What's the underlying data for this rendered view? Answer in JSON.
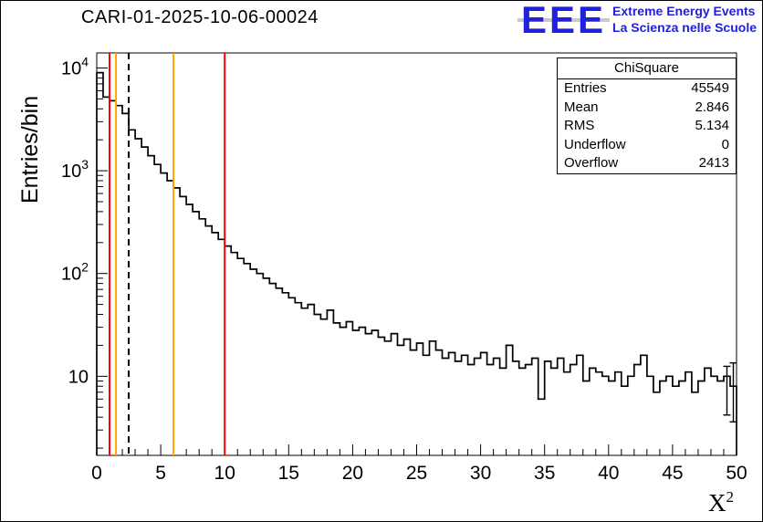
{
  "title": "CARI-01-2025-10-06-00024",
  "logo": {
    "eee": "EEE",
    "line1": "Extreme Energy Events",
    "line2": "La Scienza nelle Scuole",
    "color": "#2020dd"
  },
  "stats": {
    "title": "ChiSquare",
    "rows": [
      {
        "label": "Entries",
        "value": "45549"
      },
      {
        "label": "Mean",
        "value": "2.846"
      },
      {
        "label": "RMS",
        "value": "5.134"
      },
      {
        "label": "Underflow",
        "value": "0"
      },
      {
        "label": "Overflow",
        "value": "2413"
      }
    ]
  },
  "axes": {
    "ylabel": "Entries/bin",
    "xlabel_base": "X",
    "xlabel_sup": "2"
  },
  "colors": {
    "histogram": "#000000",
    "cut_line_red": "#ff0000",
    "cut_line_orange": "#ffa500",
    "cut_line_dashed": "#000000",
    "logo_blue": "#2020dd"
  },
  "chart_data": {
    "type": "bar",
    "subtype": "histogram-step-logy",
    "title": "CARI-01-2025-10-06-00024",
    "xlabel": "X^2",
    "ylabel": "Entries/bin",
    "xlim": [
      0,
      50
    ],
    "ylim": [
      1.7,
      14000
    ],
    "y_scale": "log",
    "grid": false,
    "bin_width": 0.5,
    "x_tick_major": 5,
    "x_tick_minor": 1,
    "x_tick_labels": [
      "0",
      "5",
      "10",
      "15",
      "20",
      "25",
      "30",
      "35",
      "40",
      "45",
      "50"
    ],
    "y_tick_labels": [
      "10",
      "10^2",
      "10^3",
      "10^4"
    ],
    "values": [
      9000,
      5200,
      4800,
      4300,
      3600,
      2500,
      2050,
      1700,
      1400,
      1150,
      950,
      800,
      680,
      560,
      470,
      400,
      340,
      290,
      250,
      215,
      185,
      160,
      140,
      125,
      110,
      100,
      90,
      80,
      72,
      65,
      58,
      52,
      46,
      50,
      40,
      36,
      44,
      33,
      30,
      34,
      28,
      30,
      26,
      28,
      24,
      22,
      26,
      20,
      23,
      18,
      21,
      16,
      22,
      18,
      15,
      17,
      14,
      16,
      13,
      15,
      17,
      13,
      15,
      12,
      20,
      14,
      12,
      13,
      15,
      6,
      14,
      12,
      15,
      11,
      13,
      16,
      9,
      12,
      11,
      10,
      9,
      11,
      8,
      10,
      13,
      16,
      10,
      7,
      9,
      10,
      8,
      9,
      11,
      7,
      9,
      12,
      10,
      9,
      10,
      8
    ],
    "vlines": [
      {
        "x": 1.0,
        "color": "#ff0000",
        "style": "solid"
      },
      {
        "x": 1.5,
        "color": "#ffa500",
        "style": "solid"
      },
      {
        "x": 2.5,
        "color": "#000000",
        "style": "dashed"
      },
      {
        "x": 6.0,
        "color": "#ffa500",
        "style": "solid"
      },
      {
        "x": 10.0,
        "color": "#ff0000",
        "style": "solid"
      }
    ],
    "error_bars": [
      {
        "x": 49.25,
        "low": 4.2,
        "high": 12.5
      },
      {
        "x": 49.75,
        "low": 3.6,
        "high": 13.5
      }
    ]
  }
}
